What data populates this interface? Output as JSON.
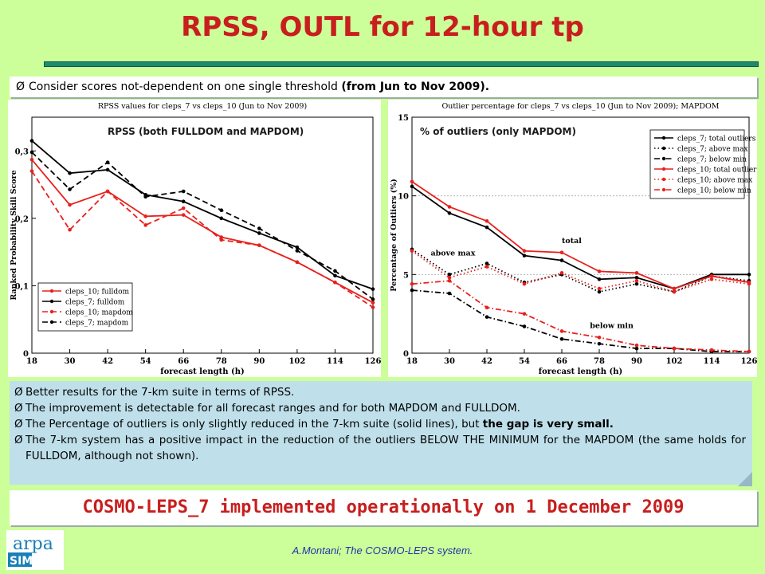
{
  "slide": {
    "title": "RPSS, OUTL for 12-hour tp",
    "top_bullet_prefix": "Consider scores not-dependent on one single threshold ",
    "top_bullet_bold": "(from Jun to Nov 2009).",
    "bullets": [
      {
        "text": "Better results for the 7-km suite in terms of RPSS.",
        "bold": ""
      },
      {
        "text": "The improvement is detectable for all forecast ranges and for both MAPDOM and FULLDOM.",
        "bold": ""
      },
      {
        "text": "The Percentage of outliers is only slightly reduced in the 7-km suite (solid lines), but ",
        "bold": "the gap is very small."
      },
      {
        "text": "The 7-km system has a positive impact in the reduction of the outliers BELOW THE MINIMUM for the MAPDOM (the same holds for FULLDOM, although not shown).",
        "bold": ""
      }
    ],
    "conclusion": "COSMO-LEPS_7 implemented operationally on 1 December 2009",
    "footer": "A.Montani; The COSMO-LEPS system.",
    "logo_text_top": "arpa",
    "logo_text_bottom": "SIM",
    "marker": "Ø"
  },
  "chart_data": [
    {
      "type": "line",
      "title": "RPSS values for cleps_7 vs cleps_10 (Jun to Nov 2009)",
      "overlay_label": "RPSS (both FULLDOM and MAPDOM)",
      "xlabel": "forecast length (h)",
      "ylabel": "Ranked Probability Skill Score",
      "x": [
        18,
        30,
        42,
        54,
        66,
        78,
        90,
        102,
        114,
        126
      ],
      "x_ticks": [
        18,
        30,
        42,
        54,
        66,
        78,
        90,
        102,
        114,
        126
      ],
      "y_ticks": [
        0,
        0.1,
        0.2,
        0.3
      ],
      "y_tick_labels": [
        "0",
        "0,1",
        "0,2",
        "0,3"
      ],
      "ylim": [
        0,
        0.35
      ],
      "legend_position": "bottom-left",
      "series": [
        {
          "name": "cleps_10; fulldom",
          "color": "#e8201c",
          "dash": "solid",
          "values": [
            0.287,
            0.22,
            0.24,
            0.203,
            0.205,
            0.172,
            0.16,
            0.135,
            0.105,
            0.075
          ]
        },
        {
          "name": "cleps_7; fulldom",
          "color": "#000000",
          "dash": "solid",
          "values": [
            0.315,
            0.267,
            0.272,
            0.235,
            0.225,
            0.2,
            0.178,
            0.157,
            0.115,
            0.095
          ]
        },
        {
          "name": "cleps_10; mapdom",
          "color": "#e8201c",
          "dash": "dashed",
          "values": [
            0.27,
            0.183,
            0.24,
            0.19,
            0.215,
            0.168,
            0.16,
            0.135,
            0.105,
            0.068
          ]
        },
        {
          "name": "cleps_7; mapdom",
          "color": "#000000",
          "dash": "dashed",
          "values": [
            0.298,
            0.243,
            0.283,
            0.232,
            0.24,
            0.212,
            0.185,
            0.152,
            0.122,
            0.08
          ]
        }
      ]
    },
    {
      "type": "line",
      "title": "Outlier percentage for cleps_7 vs cleps_10 (Jun to Nov 2009); MAPDOM",
      "overlay_label": "% of outliers (only MAPDOM)",
      "xlabel": "forecast length (h)",
      "ylabel": "Percentage of Outliers (%)",
      "x": [
        18,
        30,
        42,
        54,
        66,
        78,
        90,
        102,
        114,
        126
      ],
      "x_ticks": [
        18,
        30,
        42,
        54,
        66,
        78,
        90,
        102,
        114,
        126
      ],
      "y_ticks": [
        0,
        5,
        10,
        15
      ],
      "y_tick_labels": [
        "0",
        "5",
        "10",
        "15"
      ],
      "ylim": [
        0,
        15
      ],
      "legend_position": "top-right",
      "annotations": [
        {
          "text": "total",
          "x": 66,
          "y": 7.0
        },
        {
          "text": "above max",
          "x": 24,
          "y": 6.2
        },
        {
          "text": "below min",
          "x": 75,
          "y": 1.6
        }
      ],
      "series": [
        {
          "name": "cleps_7; total outliers",
          "color": "#000000",
          "dash": "solid",
          "values": [
            10.6,
            8.9,
            8.0,
            6.2,
            5.9,
            4.7,
            4.8,
            4.1,
            5.0,
            5.0
          ]
        },
        {
          "name": "cleps_7; above max",
          "color": "#000000",
          "dash": "dotted",
          "values": [
            6.6,
            5.0,
            5.7,
            4.5,
            5.0,
            3.9,
            4.4,
            3.9,
            4.9,
            4.6
          ]
        },
        {
          "name": "cleps_7; below min",
          "color": "#000000",
          "dash": "dashdot",
          "values": [
            4.0,
            3.8,
            2.3,
            1.7,
            0.9,
            0.6,
            0.3,
            0.3,
            0.1,
            0.1
          ]
        },
        {
          "name": "cleps_10; total outliers",
          "color": "#e8201c",
          "dash": "solid",
          "values": [
            10.9,
            9.3,
            8.4,
            6.5,
            6.4,
            5.2,
            5.1,
            4.1,
            4.9,
            4.5
          ]
        },
        {
          "name": "cleps_10; above max",
          "color": "#e8201c",
          "dash": "dotted",
          "values": [
            6.5,
            4.8,
            5.5,
            4.4,
            5.1,
            4.1,
            4.6,
            3.9,
            4.7,
            4.4
          ]
        },
        {
          "name": "cleps_10; below min",
          "color": "#e8201c",
          "dash": "dashdot",
          "values": [
            4.4,
            4.6,
            2.9,
            2.5,
            1.4,
            1.0,
            0.5,
            0.3,
            0.2,
            0.1
          ]
        }
      ]
    }
  ]
}
